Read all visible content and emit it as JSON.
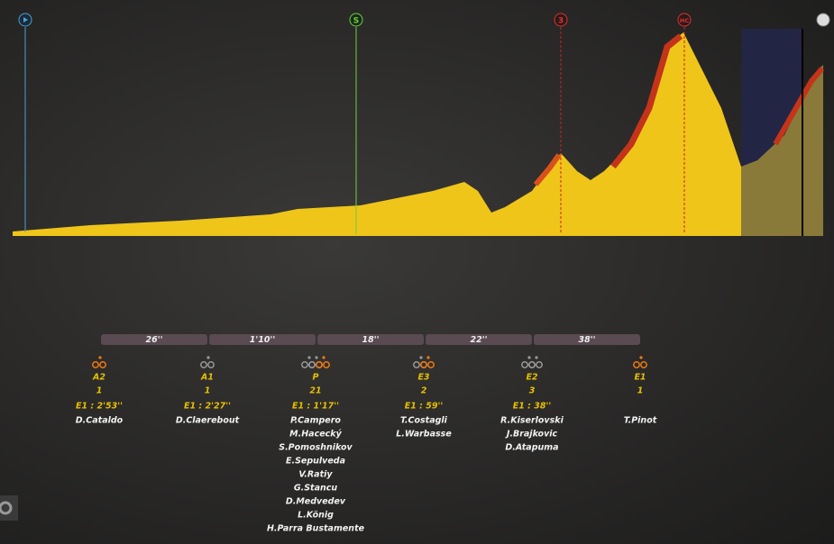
{
  "profile": {
    "markers": [
      "S",
      "3",
      "HC"
    ]
  },
  "gaps": [
    "26''",
    "1'10''",
    "18''",
    "22''",
    "38''"
  ],
  "groups": [
    {
      "label": "A2",
      "count": "1",
      "time": "E1 : 2'53''",
      "riders": [
        "D.Cataldo"
      ]
    },
    {
      "label": "A1",
      "count": "1",
      "time": "E1 : 2'27''",
      "riders": [
        "D.Claerebout"
      ]
    },
    {
      "label": "P",
      "count": "21",
      "time": "E1 : 1'17''",
      "riders": [
        "P.Campero",
        "M.Hacecký",
        "S.Pomoshnikov",
        "E.Sepulveda",
        "V.Ratiy",
        "G.Stancu",
        "D.Medvedev",
        "L.König",
        "H.Parra Bustamente"
      ]
    },
    {
      "label": "E3",
      "count": "2",
      "time": "E1 : 59''",
      "riders": [
        "T.Costagli",
        "L.Warbasse"
      ]
    },
    {
      "label": "E2",
      "count": "3",
      "time": "E1 : 38''",
      "riders": [
        "R.Kiserlovski",
        "J.Brajkovic",
        "D.Atapuma"
      ]
    },
    {
      "label": "E1",
      "count": "1",
      "riders": [
        "T.Pinot"
      ]
    }
  ]
}
